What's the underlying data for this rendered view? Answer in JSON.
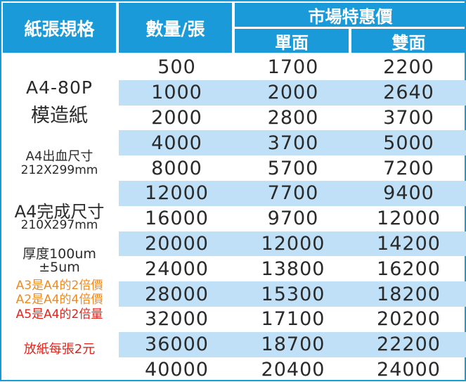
{
  "header": {
    "spec": "紙張規格",
    "qty": "數量/張",
    "price_group": "市場特惠價",
    "single": "單面",
    "double": "雙面"
  },
  "spec_notes": {
    "size": "A4-80P",
    "paper": "模造紙",
    "bleed_label": "A4出血尺寸",
    "bleed_dim": "212X299mm",
    "finish_label": "A4完成尺寸",
    "finish_dim": "210X297mm",
    "thickness": "厚度100um",
    "tolerance": "±5um",
    "note_a3": "A3是A4的2倍價",
    "note_a2": "A2是A4的4倍價",
    "note_a5": "A5是A4的2倍量",
    "note_loose": "放紙每張2元"
  },
  "rows": [
    {
      "qty": "500",
      "single": "1700",
      "double": "2200"
    },
    {
      "qty": "1000",
      "single": "2000",
      "double": "2640"
    },
    {
      "qty": "2000",
      "single": "2800",
      "double": "3700"
    },
    {
      "qty": "4000",
      "single": "3700",
      "double": "5000"
    },
    {
      "qty": "8000",
      "single": "5700",
      "double": "7200"
    },
    {
      "qty": "12000",
      "single": "7700",
      "double": "9400"
    },
    {
      "qty": "16000",
      "single": "9700",
      "double": "12000"
    },
    {
      "qty": "20000",
      "single": "12000",
      "double": "14200"
    },
    {
      "qty": "24000",
      "single": "13800",
      "double": "16200"
    },
    {
      "qty": "28000",
      "single": "15300",
      "double": "18200"
    },
    {
      "qty": "32000",
      "single": "17100",
      "double": "20200"
    },
    {
      "qty": "36000",
      "single": "18700",
      "double": "22200"
    },
    {
      "qty": "40000",
      "single": "20400",
      "double": "24000"
    }
  ],
  "colors": {
    "header_bg": "#1a9ad8",
    "stripe": "#bfe0f6",
    "note_orange": "#f08a1c",
    "note_red": "#e0261c"
  }
}
